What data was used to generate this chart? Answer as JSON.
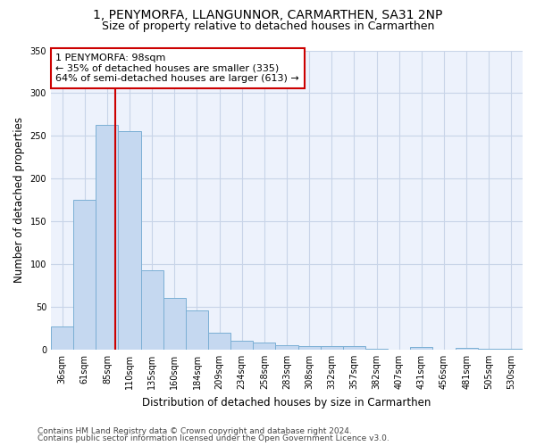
{
  "title_line1": "1, PENYMORFA, LLANGUNNOR, CARMARTHEN, SA31 2NP",
  "title_line2": "Size of property relative to detached houses in Carmarthen",
  "xlabel": "Distribution of detached houses by size in Carmarthen",
  "ylabel": "Number of detached properties",
  "categories": [
    "36sqm",
    "61sqm",
    "85sqm",
    "110sqm",
    "135sqm",
    "160sqm",
    "184sqm",
    "209sqm",
    "234sqm",
    "258sqm",
    "283sqm",
    "308sqm",
    "332sqm",
    "357sqm",
    "382sqm",
    "407sqm",
    "431sqm",
    "456sqm",
    "481sqm",
    "505sqm",
    "530sqm"
  ],
  "values": [
    27,
    175,
    263,
    256,
    93,
    60,
    46,
    20,
    10,
    8,
    5,
    4,
    4,
    4,
    1,
    0,
    3,
    0,
    2,
    1,
    1
  ],
  "bar_color": "#c5d8f0",
  "bar_edge_color": "#7bafd4",
  "grid_color": "#c8d4e8",
  "background_color": "#edf2fc",
  "annotation_box_text": "1 PENYMORFA: 98sqm\n← 35% of detached houses are smaller (335)\n64% of semi-detached houses are larger (613) →",
  "annotation_box_color": "#cc0000",
  "vline_color": "#cc0000",
  "vline_x": 2.35,
  "ylim": [
    0,
    350
  ],
  "yticks": [
    0,
    50,
    100,
    150,
    200,
    250,
    300,
    350
  ],
  "footer_line1": "Contains HM Land Registry data © Crown copyright and database right 2024.",
  "footer_line2": "Contains public sector information licensed under the Open Government Licence v3.0.",
  "title_fontsize": 10,
  "subtitle_fontsize": 9,
  "axis_label_fontsize": 8.5,
  "tick_fontsize": 7,
  "annotation_fontsize": 8,
  "footer_fontsize": 6.5
}
